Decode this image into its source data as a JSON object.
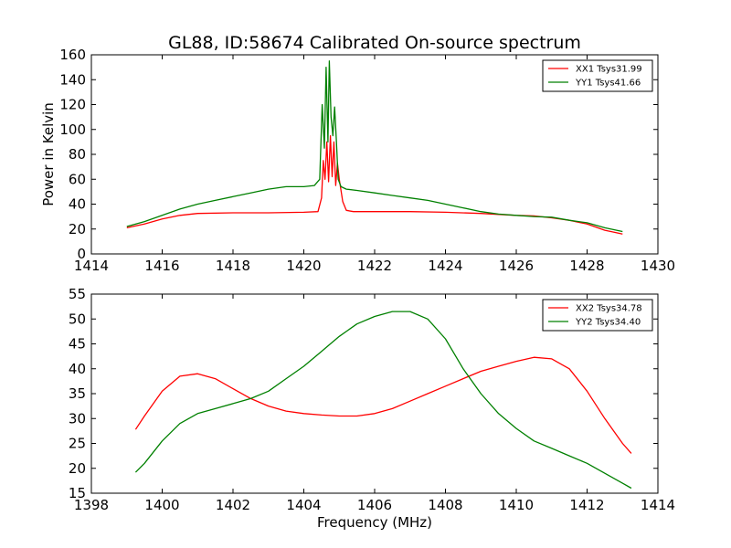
{
  "chart_data": [
    {
      "type": "line",
      "title": "GL88, ID:58674 Calibrated On-source spectrum",
      "xlabel": "",
      "ylabel": "Power in Kelvin",
      "xlim": [
        1414,
        1430
      ],
      "ylim": [
        0,
        160
      ],
      "xticks": [
        1414,
        1416,
        1418,
        1420,
        1422,
        1424,
        1426,
        1428,
        1430
      ],
      "yticks": [
        0,
        20,
        40,
        60,
        80,
        100,
        120,
        140,
        160
      ],
      "grid": false,
      "legend_position": "top-right",
      "series": [
        {
          "name": "XX1 Tsys31.99",
          "color": "#ff0000",
          "x": [
            1415.0,
            1415.5,
            1416.0,
            1416.5,
            1417.0,
            1418.0,
            1419.0,
            1420.0,
            1420.4,
            1420.5,
            1420.55,
            1420.6,
            1420.65,
            1420.7,
            1420.75,
            1420.8,
            1420.85,
            1420.9,
            1420.95,
            1421.0,
            1421.1,
            1421.2,
            1421.4,
            1422.0,
            1423.0,
            1424.0,
            1425.0,
            1426.0,
            1426.5,
            1427.0,
            1427.5,
            1428.0,
            1428.5,
            1429.0
          ],
          "y": [
            21,
            24,
            28,
            31,
            32.5,
            33,
            33,
            33.5,
            34,
            45,
            75,
            60,
            90,
            58,
            95,
            62,
            90,
            55,
            73,
            60,
            42,
            35,
            34,
            34,
            34,
            33.5,
            32.5,
            31,
            30.5,
            29,
            27,
            24,
            19,
            16
          ]
        },
        {
          "name": "YY1 Tsys41.66",
          "color": "#008000",
          "x": [
            1415.0,
            1415.5,
            1416.0,
            1416.5,
            1417.0,
            1417.5,
            1418.0,
            1418.5,
            1419.0,
            1419.5,
            1420.0,
            1420.3,
            1420.45,
            1420.52,
            1420.58,
            1420.63,
            1420.68,
            1420.72,
            1420.77,
            1420.82,
            1420.87,
            1420.92,
            1420.97,
            1421.05,
            1421.2,
            1421.5,
            1422.0,
            1422.5,
            1423.0,
            1423.5,
            1424.0,
            1424.5,
            1425.0,
            1425.5,
            1426.0,
            1426.5,
            1427.0,
            1427.5,
            1428.0,
            1428.5,
            1429.0
          ],
          "y": [
            22,
            26,
            31,
            36,
            40,
            43,
            46,
            49,
            52,
            54,
            54,
            55,
            60,
            120,
            85,
            150,
            90,
            155,
            110,
            95,
            118,
            90,
            60,
            54,
            52,
            51,
            49,
            47,
            45,
            43,
            40,
            37,
            34,
            32,
            31,
            30,
            29.5,
            27,
            25,
            21,
            18
          ]
        }
      ]
    },
    {
      "type": "line",
      "title": "",
      "xlabel": "Frequency (MHz)",
      "ylabel": "",
      "xlim": [
        1398,
        1414
      ],
      "ylim": [
        15,
        55
      ],
      "xticks": [
        1398,
        1400,
        1402,
        1404,
        1406,
        1408,
        1410,
        1412,
        1414
      ],
      "yticks": [
        15,
        20,
        25,
        30,
        35,
        40,
        45,
        50,
        55
      ],
      "grid": false,
      "legend_position": "top-right",
      "series": [
        {
          "name": "XX2 Tsys34.78",
          "color": "#ff0000",
          "x": [
            1399.25,
            1399.5,
            1400.0,
            1400.5,
            1401.0,
            1401.5,
            1402.0,
            1402.5,
            1403.0,
            1403.5,
            1404.0,
            1404.5,
            1405.0,
            1405.5,
            1406.0,
            1406.5,
            1407.0,
            1407.5,
            1408.0,
            1408.5,
            1409.0,
            1409.5,
            1410.0,
            1410.5,
            1411.0,
            1411.5,
            1412.0,
            1412.5,
            1413.0,
            1413.25
          ],
          "y": [
            27.8,
            30.5,
            35.5,
            38.5,
            39,
            38,
            36,
            34,
            32.5,
            31.5,
            31,
            30.7,
            30.5,
            30.5,
            31,
            32,
            33.5,
            35,
            36.5,
            38,
            39.5,
            40.5,
            41.5,
            42.3,
            42,
            40,
            35.5,
            30,
            25,
            23
          ]
        },
        {
          "name": "YY2 Tsys34.40",
          "color": "#008000",
          "x": [
            1399.25,
            1399.5,
            1400.0,
            1400.5,
            1401.0,
            1401.5,
            1402.0,
            1402.5,
            1403.0,
            1403.5,
            1404.0,
            1404.5,
            1405.0,
            1405.5,
            1406.0,
            1406.5,
            1407.0,
            1407.5,
            1408.0,
            1408.5,
            1409.0,
            1409.5,
            1410.0,
            1410.5,
            1411.0,
            1411.5,
            1412.0,
            1412.5,
            1413.0,
            1413.25
          ],
          "y": [
            19.2,
            21,
            25.5,
            29,
            31,
            32,
            33,
            34,
            35.5,
            38,
            40.5,
            43.5,
            46.5,
            49,
            50.5,
            51.5,
            51.5,
            50,
            46,
            40,
            35,
            31,
            28,
            25.5,
            24,
            22.5,
            21,
            19,
            17,
            16
          ]
        }
      ]
    }
  ]
}
